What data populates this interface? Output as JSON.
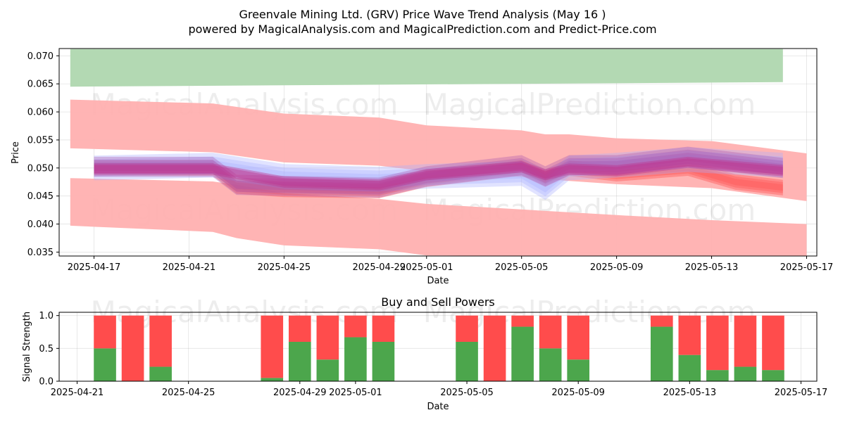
{
  "chart_data": [
    {
      "type": "area",
      "title": "Greenvale Mining Ltd. (GRV) Price Wave Trend Analysis (May 16 )",
      "subtitle": "powered by MagicalAnalysis.com and MagicalPrediction.com and Predict-Price.com",
      "xlabel": "Date",
      "ylabel": "Price",
      "x_ticks": [
        "2025-04-17",
        "2025-04-21",
        "2025-04-25",
        "2025-04-29",
        "2025-05-01",
        "2025-05-05",
        "2025-05-09",
        "2025-05-13",
        "2025-05-17"
      ],
      "y_ticks": [
        "0.035",
        "0.040",
        "0.045",
        "0.050",
        "0.055",
        "0.060",
        "0.065",
        "0.070"
      ],
      "ylim": [
        0.0343,
        0.0713
      ],
      "grid": true,
      "watermarks": [
        "MagicalAnalysis.com",
        "MagicalPrediction.com"
      ],
      "colors": {
        "green_band": "#b3d9b3",
        "red_band": "#ffb0b0",
        "red_wave": "#ff5a5a",
        "blue_wave": "#aab0ff",
        "purple_wave": "#a855b0",
        "magenta_wave": "#c0308a"
      },
      "bands": [
        {
          "name": "upper-green-band",
          "x": [
            "2025-04-16",
            "2025-05-16"
          ],
          "upper": [
            0.0712,
            0.0712
          ],
          "lower": [
            0.0645,
            0.0653
          ]
        },
        {
          "name": "upper-red-band",
          "x": [
            "2025-04-16",
            "2025-04-22",
            "2025-04-25",
            "2025-04-29",
            "2025-05-01",
            "2025-05-05",
            "2025-05-06",
            "2025-05-07",
            "2025-05-09",
            "2025-05-13",
            "2025-05-17"
          ],
          "upper": [
            0.0622,
            0.0615,
            0.0597,
            0.059,
            0.0576,
            0.0567,
            0.056,
            0.056,
            0.0553,
            0.0548,
            0.0526
          ],
          "lower": [
            0.0535,
            0.0528,
            0.051,
            0.0504,
            0.0494,
            0.0484,
            0.048,
            0.0477,
            0.0471,
            0.0464,
            0.0441
          ]
        },
        {
          "name": "lower-red-band",
          "x": [
            "2025-04-16",
            "2025-04-22",
            "2025-04-23",
            "2025-04-25",
            "2025-04-29",
            "2025-05-01",
            "2025-05-05",
            "2025-05-09",
            "2025-05-13",
            "2025-05-17"
          ],
          "upper": [
            0.0482,
            0.0476,
            0.047,
            0.0455,
            0.0445,
            0.0436,
            0.0426,
            0.0416,
            0.0407,
            0.04
          ],
          "lower": [
            0.0397,
            0.0386,
            0.0375,
            0.0362,
            0.0355,
            0.0344,
            0.0343,
            0.0343,
            0.0343,
            0.0343
          ]
        }
      ],
      "waves": [
        {
          "name": "red-wave",
          "x": [
            "2025-04-17",
            "2025-04-22",
            "2025-04-23",
            "2025-04-25",
            "2025-04-29",
            "2025-05-01",
            "2025-05-05",
            "2025-05-06",
            "2025-05-07",
            "2025-05-09",
            "2025-05-12",
            "2025-05-14",
            "2025-05-16"
          ],
          "center": [
            0.05,
            0.05,
            0.0468,
            0.0462,
            0.046,
            0.048,
            0.05,
            0.048,
            0.05,
            0.049,
            0.05,
            0.0475,
            0.0465
          ],
          "half_width": 0.0014
        },
        {
          "name": "blue-wave",
          "x": [
            "2025-04-17",
            "2025-04-22",
            "2025-04-25",
            "2025-04-29",
            "2025-05-01",
            "2025-05-05",
            "2025-05-06",
            "2025-05-07",
            "2025-05-09",
            "2025-05-12",
            "2025-05-16"
          ],
          "center": [
            0.05,
            0.0505,
            0.0485,
            0.048,
            0.0485,
            0.049,
            0.0465,
            0.05,
            0.0505,
            0.0515,
            0.0505
          ],
          "half_width": 0.0022
        },
        {
          "name": "purple-wave",
          "x": [
            "2025-04-17",
            "2025-04-22",
            "2025-04-23",
            "2025-04-25",
            "2025-04-29",
            "2025-05-01",
            "2025-05-05",
            "2025-05-06",
            "2025-05-07",
            "2025-05-09",
            "2025-05-12",
            "2025-05-16"
          ],
          "center": [
            0.0502,
            0.0502,
            0.047,
            0.0468,
            0.0465,
            0.0485,
            0.0505,
            0.0485,
            0.0505,
            0.0505,
            0.052,
            0.05
          ],
          "half_width": 0.0018
        },
        {
          "name": "magenta-wave",
          "x": [
            "2025-04-17",
            "2025-04-22",
            "2025-04-25",
            "2025-04-29",
            "2025-05-01",
            "2025-05-05",
            "2025-05-06",
            "2025-05-07",
            "2025-05-09",
            "2025-05-12",
            "2025-05-16"
          ],
          "center": [
            0.0498,
            0.0498,
            0.0475,
            0.047,
            0.0488,
            0.0502,
            0.0488,
            0.0498,
            0.0495,
            0.051,
            0.0495
          ],
          "half_width": 0.001
        }
      ]
    },
    {
      "type": "bar",
      "title": "Buy and Sell Powers",
      "xlabel": "Date",
      "ylabel": "Signal Strength",
      "x_ticks": [
        "2025-04-21",
        "2025-04-25",
        "2025-04-29",
        "2025-05-01",
        "2025-05-05",
        "2025-05-09",
        "2025-05-13",
        "2025-05-17"
      ],
      "y_ticks": [
        "0.0",
        "0.5",
        "1.0"
      ],
      "ylim": [
        0,
        1.05
      ],
      "grid": true,
      "stacked": true,
      "colors": {
        "buy": "#4ca64c",
        "sell": "#ff4c4c"
      },
      "categories": [
        "2025-04-22",
        "2025-04-23",
        "2025-04-24",
        "2025-04-28",
        "2025-04-29",
        "2025-04-30",
        "2025-05-01",
        "2025-05-02",
        "2025-05-05",
        "2025-05-06",
        "2025-05-07",
        "2025-05-08",
        "2025-05-09",
        "2025-05-12",
        "2025-05-13",
        "2025-05-14",
        "2025-05-15",
        "2025-05-16"
      ],
      "series": [
        {
          "name": "Buy",
          "values": [
            0.5,
            0.0,
            0.22,
            0.05,
            0.6,
            0.33,
            0.67,
            0.6,
            0.6,
            0.0,
            0.83,
            0.5,
            0.33,
            0.83,
            0.4,
            0.17,
            0.22,
            0.17
          ]
        },
        {
          "name": "Sell",
          "values": [
            0.5,
            1.0,
            0.78,
            0.95,
            0.4,
            0.67,
            0.33,
            0.4,
            0.4,
            1.0,
            0.17,
            0.5,
            0.67,
            0.17,
            0.6,
            0.83,
            0.78,
            0.83
          ]
        }
      ]
    }
  ]
}
